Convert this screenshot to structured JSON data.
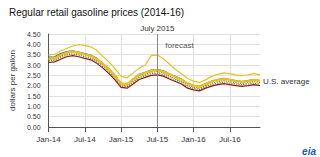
{
  "chart_data": {
    "type": "line",
    "title": "Regular retail gasoline prices (2014-16)",
    "ylabel": "dollars per gallon",
    "categories": [
      "Jan-14",
      null,
      null,
      null,
      null,
      null,
      "Jul-14",
      null,
      null,
      null,
      null,
      null,
      "Jan-15",
      null,
      null,
      null,
      null,
      null,
      "Jul-15",
      null,
      null,
      null,
      null,
      null,
      "Jan-16",
      null,
      null,
      null,
      null,
      null,
      "Jul-16",
      null,
      null,
      null,
      null,
      null
    ],
    "series": [
      {
        "color": "#8b1a1a",
        "line_style": "solid",
        "values": [
          3.12,
          3.15,
          3.28,
          3.4,
          3.45,
          3.4,
          3.32,
          3.25,
          3.08,
          2.85,
          2.58,
          2.28,
          1.92,
          1.88,
          2.08,
          2.3,
          2.4,
          2.5,
          2.52,
          2.46,
          2.32,
          2.2,
          2.08,
          1.88,
          1.8,
          1.75,
          1.88,
          1.98,
          2.05,
          2.1,
          2.05,
          2.0,
          1.97,
          2.0,
          2.05,
          2.0
        ]
      },
      {
        "color": "#8b7030",
        "line_style": "dotted",
        "values": [
          3.2,
          3.22,
          3.35,
          3.48,
          3.52,
          3.48,
          3.4,
          3.32,
          3.15,
          2.92,
          2.65,
          2.35,
          1.98,
          1.95,
          2.15,
          2.38,
          2.48,
          2.58,
          2.6,
          2.54,
          2.4,
          2.28,
          2.15,
          1.95,
          1.87,
          1.82,
          1.95,
          2.05,
          2.12,
          2.18,
          2.12,
          2.08,
          2.05,
          2.08,
          2.12,
          2.08
        ]
      },
      {
        "color": "#5a8a3c",
        "line_style": "dotted",
        "values": [
          3.25,
          3.28,
          3.42,
          3.55,
          3.6,
          3.55,
          3.48,
          3.4,
          3.22,
          3.0,
          2.72,
          2.42,
          2.05,
          2.0,
          2.22,
          2.45,
          2.55,
          2.65,
          2.68,
          2.62,
          2.48,
          2.35,
          2.22,
          2.02,
          1.93,
          1.88,
          2.0,
          2.12,
          2.2,
          2.25,
          2.2,
          2.15,
          2.1,
          2.15,
          2.2,
          2.15
        ]
      },
      {
        "color": "#1a6faf",
        "line_style": "solid",
        "values": [
          3.38,
          3.4,
          3.55,
          3.65,
          3.68,
          3.62,
          3.55,
          3.48,
          3.32,
          3.08,
          2.82,
          2.5,
          2.12,
          2.08,
          2.32,
          2.55,
          2.65,
          2.75,
          2.78,
          2.72,
          2.58,
          2.45,
          2.32,
          2.12,
          2.02,
          1.97,
          2.1,
          2.22,
          2.3,
          2.35,
          2.3,
          2.25,
          2.2,
          2.25,
          2.3,
          2.25
        ]
      },
      {
        "color": "#e8c020",
        "line_style": "solid",
        "values": [
          3.48,
          3.52,
          3.68,
          3.8,
          3.92,
          3.98,
          3.95,
          3.88,
          3.7,
          3.42,
          3.15,
          2.82,
          2.45,
          2.38,
          2.62,
          2.85,
          3.0,
          3.45,
          3.48,
          3.3,
          3.05,
          2.78,
          2.58,
          2.35,
          2.22,
          2.15,
          2.28,
          2.45,
          2.55,
          2.62,
          2.58,
          2.52,
          2.48,
          2.52,
          2.58,
          2.52
        ]
      },
      {
        "name": "U.S. average",
        "color": "#f0c010",
        "line_style": "solid",
        "values": [
          3.3,
          3.33,
          3.48,
          3.6,
          3.65,
          3.6,
          3.52,
          3.45,
          3.28,
          3.05,
          2.78,
          2.48,
          2.1,
          2.06,
          2.3,
          2.52,
          2.62,
          2.72,
          2.75,
          2.68,
          2.55,
          2.42,
          2.3,
          2.1,
          2.0,
          1.95,
          2.08,
          2.2,
          2.28,
          2.32,
          2.28,
          2.22,
          2.18,
          2.22,
          2.28,
          2.22
        ]
      }
    ],
    "annotations": [
      {
        "text": "July 2015",
        "x": "Jul-15"
      },
      {
        "text": "forecast",
        "from": "Jul-15"
      },
      {
        "text": "eia",
        "color": "#1a5fa8"
      }
    ],
    "ylim": [
      0.0,
      4.5
    ],
    "yticks": [
      {
        "value": 0.0,
        "label": "0.00"
      },
      {
        "value": 0.5,
        "label": "0.50"
      },
      {
        "value": 1.0,
        "label": "1.00"
      },
      {
        "value": 1.5,
        "label": "1.50"
      },
      {
        "value": 2.0,
        "label": "2.00"
      },
      {
        "value": 2.5,
        "label": "2.50"
      },
      {
        "value": 3.0,
        "label": "3.00"
      },
      {
        "value": 3.5,
        "label": "3.50"
      },
      {
        "value": 4.0,
        "label": "4.00"
      },
      {
        "value": 4.5,
        "label": "4.50"
      }
    ],
    "grid": true
  }
}
